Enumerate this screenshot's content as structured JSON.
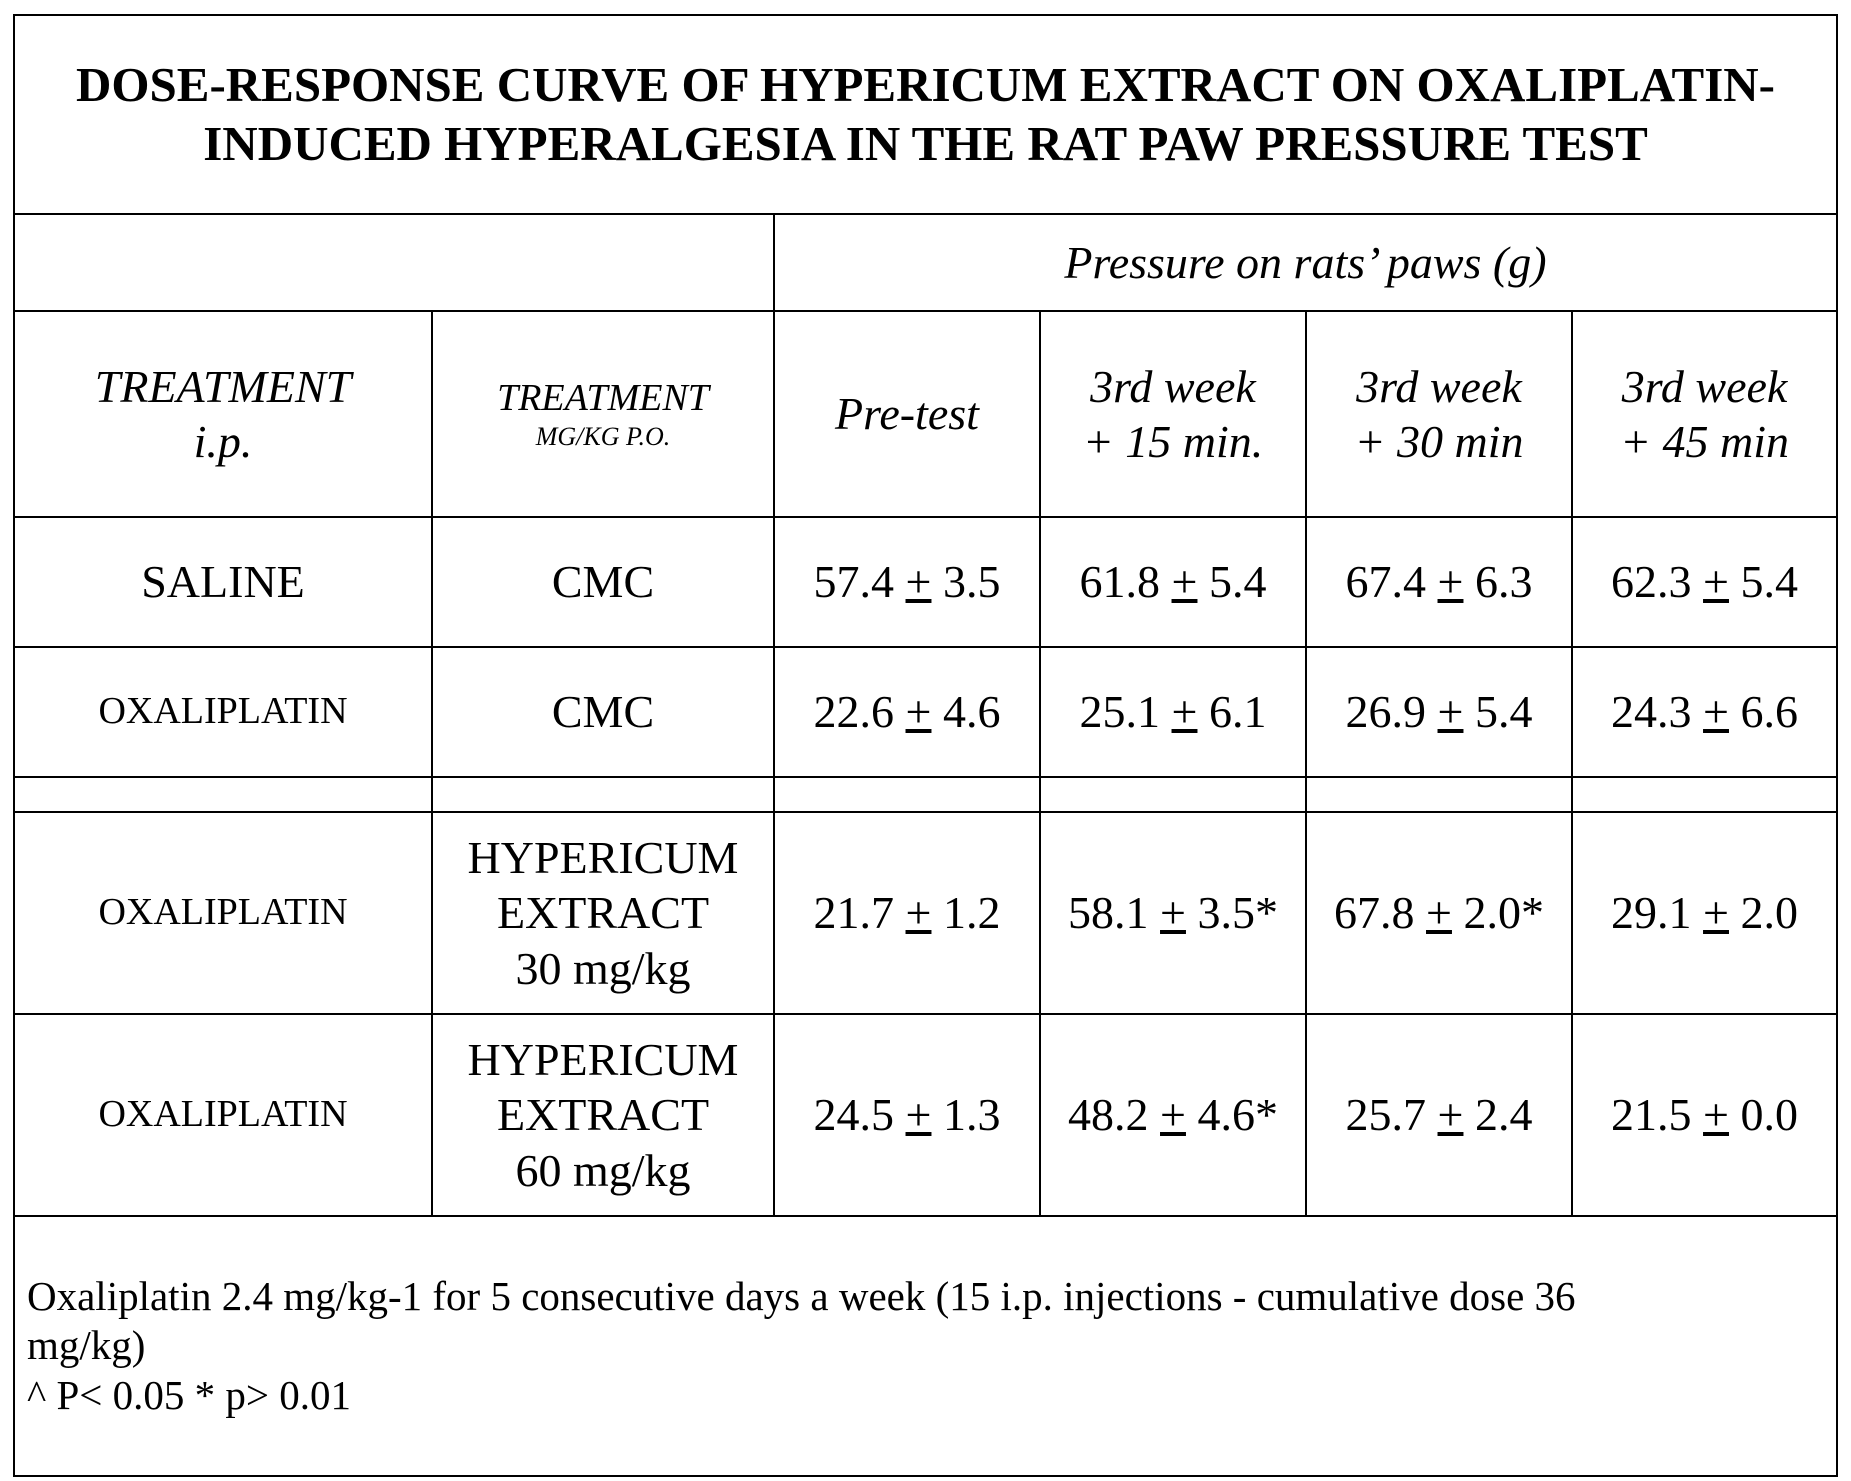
{
  "title": {
    "line1": "DOSE-RESPONSE CURVE OF HYPERICUM EXTRACT ON OXALIPLATIN-",
    "line2": "INDUCED HYPERALGESIA IN THE RAT PAW PRESSURE TEST"
  },
  "group_header": "Pressure on rats’ paws (g)",
  "headers": {
    "treatment_ip": {
      "line1": "TREATMENT",
      "line2": "i.p."
    },
    "treatment_po": {
      "line1": "TREATMENT",
      "line2": "MG/KG P.O."
    },
    "pretest": "Pre-test",
    "w15": {
      "line1": "3rd week",
      "line2": "+ 15 min."
    },
    "w30": {
      "line1": "3rd week",
      "line2": "+ 30 min"
    },
    "w45": {
      "line1": "3rd week",
      "line2": "+ 45 min"
    }
  },
  "pm_symbol": "+",
  "rows": [
    {
      "treatment_ip": "SALINE",
      "treatment_po": [
        "CMC"
      ],
      "values": [
        {
          "mean": "57.4",
          "sd": "3.5",
          "mark": ""
        },
        {
          "mean": "61.8",
          "sd": "5.4",
          "mark": ""
        },
        {
          "mean": "67.4",
          "sd": "6.3",
          "mark": ""
        },
        {
          "mean": "62.3",
          "sd": "5.4",
          "mark": ""
        }
      ]
    },
    {
      "treatment_ip": "OXALIPLATIN",
      "treatment_po": [
        "CMC"
      ],
      "values": [
        {
          "mean": "22.6",
          "sd": "4.6",
          "mark": ""
        },
        {
          "mean": "25.1",
          "sd": "6.1",
          "mark": ""
        },
        {
          "mean": "26.9",
          "sd": "5.4",
          "mark": ""
        },
        {
          "mean": "24.3",
          "sd": "6.6",
          "mark": ""
        }
      ]
    },
    {
      "treatment_ip": "OXALIPLATIN",
      "treatment_po": [
        "HYPERICUM",
        "EXTRACT",
        "30 mg/kg"
      ],
      "values": [
        {
          "mean": "21.7",
          "sd": "1.2",
          "mark": ""
        },
        {
          "mean": "58.1",
          "sd": "3.5",
          "mark": "*"
        },
        {
          "mean": "67.8",
          "sd": "2.0",
          "mark": "*"
        },
        {
          "mean": "29.1",
          "sd": "2.0",
          "mark": ""
        }
      ]
    },
    {
      "treatment_ip": "OXALIPLATIN",
      "treatment_po": [
        "HYPERICUM",
        "EXTRACT",
        "60 mg/kg"
      ],
      "values": [
        {
          "mean": "24.5",
          "sd": "1.3",
          "mark": ""
        },
        {
          "mean": "48.2",
          "sd": "4.6",
          "mark": "*"
        },
        {
          "mean": "25.7",
          "sd": "2.4",
          "mark": ""
        },
        {
          "mean": "21.5",
          "sd": "0.0",
          "mark": ""
        }
      ]
    }
  ],
  "notes": {
    "line1": "Oxaliplatin 2.4 mg/kg-1 for 5 consecutive days a week (15 i.p. injections - cumulative dose 36",
    "line2": "mg/kg)",
    "line3": "^ P< 0.05 * p> 0.01"
  }
}
